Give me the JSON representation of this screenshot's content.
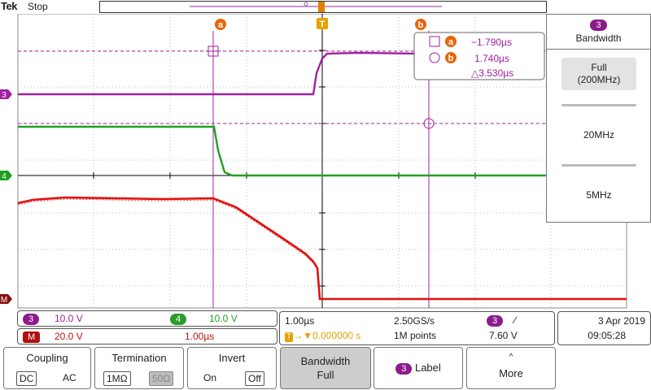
{
  "top": {
    "brand": "Tek",
    "status": "Stop",
    "trigger_marker": "T"
  },
  "cursors": {
    "a_label": "a",
    "b_label": "b",
    "readout": {
      "a_value": "−1.790µs",
      "b_value": "1.740µs",
      "delta": "△3.530µs"
    }
  },
  "channel_markers": {
    "ch3": "3",
    "ch4": "4",
    "math": "M"
  },
  "bandwidth_menu": {
    "channel": "3",
    "title": "Bandwidth",
    "options": [
      "Full\n(200MHz)",
      "20MHz",
      "5MHz"
    ],
    "selected": "Full (200MHz)"
  },
  "info": {
    "ch3": {
      "label": "3",
      "scale": "10.0 V"
    },
    "ch4": {
      "label": "4",
      "scale": "10.0 V"
    },
    "math": {
      "label": "M",
      "scale": "20.0 V",
      "time": "1.00µs"
    },
    "horizontal": {
      "time_per_div": "1.00µs",
      "sample_rate": "2.50GS/s",
      "trigger_offset": "0.000000 s",
      "record_length": "1M points"
    },
    "trigger": {
      "source": "3",
      "slope": "∕",
      "level": "7.60 V"
    },
    "date": "3 Apr  2019",
    "time": "09:05:28"
  },
  "buttons": {
    "coupling": {
      "label": "Coupling",
      "opt1": "DC",
      "opt2": "AC"
    },
    "termination": {
      "label": "Termination",
      "opt1": "1MΩ",
      "opt2": "50Ω"
    },
    "invert": {
      "label": "Invert",
      "opt1": "On",
      "opt2": "Off"
    },
    "bandwidth": {
      "label": "Bandwidth",
      "value": "Full"
    },
    "label": {
      "badge": "3",
      "text": "Label"
    },
    "more": {
      "text": "More"
    }
  },
  "colors": {
    "ch3": "#a020a0",
    "ch4": "#20a020",
    "math": "#e01010",
    "grid": "#000000"
  }
}
